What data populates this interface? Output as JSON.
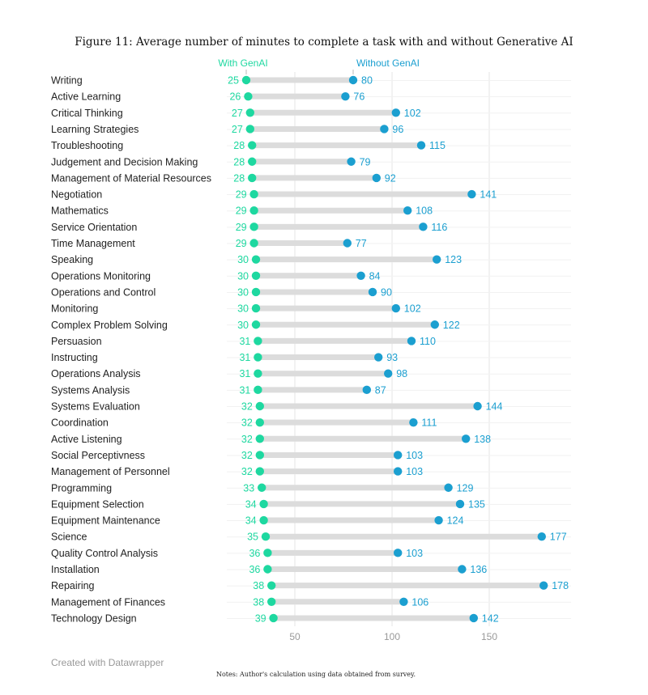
{
  "chart_data": {
    "type": "dumbbell",
    "title": "Figure 11: Average number of minutes to complete a task with and without Generative AI",
    "series": [
      {
        "name": "With GenAI",
        "color": "#1ed8a0"
      },
      {
        "name": "Without GenAI",
        "color": "#1b9fd0"
      }
    ],
    "x_ticks": [
      50,
      100,
      150
    ],
    "xlim": [
      0,
      192
    ],
    "grid": true,
    "rows": [
      {
        "label": "Writing",
        "with": 25,
        "without": 80
      },
      {
        "label": "Active Learning",
        "with": 26,
        "without": 76
      },
      {
        "label": "Critical Thinking",
        "with": 27,
        "without": 102
      },
      {
        "label": "Learning Strategies",
        "with": 27,
        "without": 96
      },
      {
        "label": "Troubleshooting",
        "with": 28,
        "without": 115
      },
      {
        "label": "Judgement and Decision Making",
        "with": 28,
        "without": 79
      },
      {
        "label": "Management of Material Resources",
        "with": 28,
        "without": 92
      },
      {
        "label": "Negotiation",
        "with": 29,
        "without": 141
      },
      {
        "label": "Mathematics",
        "with": 29,
        "without": 108
      },
      {
        "label": "Service Orientation",
        "with": 29,
        "without": 116
      },
      {
        "label": "Time Management",
        "with": 29,
        "without": 77
      },
      {
        "label": "Speaking",
        "with": 30,
        "without": 123
      },
      {
        "label": "Operations Monitoring",
        "with": 30,
        "without": 84
      },
      {
        "label": "Operations and Control",
        "with": 30,
        "without": 90
      },
      {
        "label": "Monitoring",
        "with": 30,
        "without": 102
      },
      {
        "label": "Complex Problem Solving",
        "with": 30,
        "without": 122
      },
      {
        "label": "Persuasion",
        "with": 31,
        "without": 110
      },
      {
        "label": "Instructing",
        "with": 31,
        "without": 93
      },
      {
        "label": "Operations Analysis",
        "with": 31,
        "without": 98
      },
      {
        "label": "Systems Analysis",
        "with": 31,
        "without": 87
      },
      {
        "label": "Systems Evaluation",
        "with": 32,
        "without": 144
      },
      {
        "label": "Coordination",
        "with": 32,
        "without": 111
      },
      {
        "label": "Active Listening",
        "with": 32,
        "without": 138
      },
      {
        "label": "Social Perceptivness",
        "with": 32,
        "without": 103
      },
      {
        "label": "Management of Personnel",
        "with": 32,
        "without": 103
      },
      {
        "label": "Programming",
        "with": 33,
        "without": 129
      },
      {
        "label": "Equipment Selection",
        "with": 34,
        "without": 135
      },
      {
        "label": "Equipment Maintenance",
        "with": 34,
        "without": 124
      },
      {
        "label": "Science",
        "with": 35,
        "without": 177
      },
      {
        "label": "Quality Control Analysis",
        "with": 36,
        "without": 103
      },
      {
        "label": "Installation",
        "with": 36,
        "without": 136
      },
      {
        "label": "Repairing",
        "with": 38,
        "without": 178
      },
      {
        "label": "Management of Finances",
        "with": 38,
        "without": 106
      },
      {
        "label": "Technology Design",
        "with": 39,
        "without": 142
      }
    ]
  },
  "footer": {
    "credit": "Created with Datawrapper",
    "notes": "Notes: Author's calculation using data obtained from survey."
  }
}
